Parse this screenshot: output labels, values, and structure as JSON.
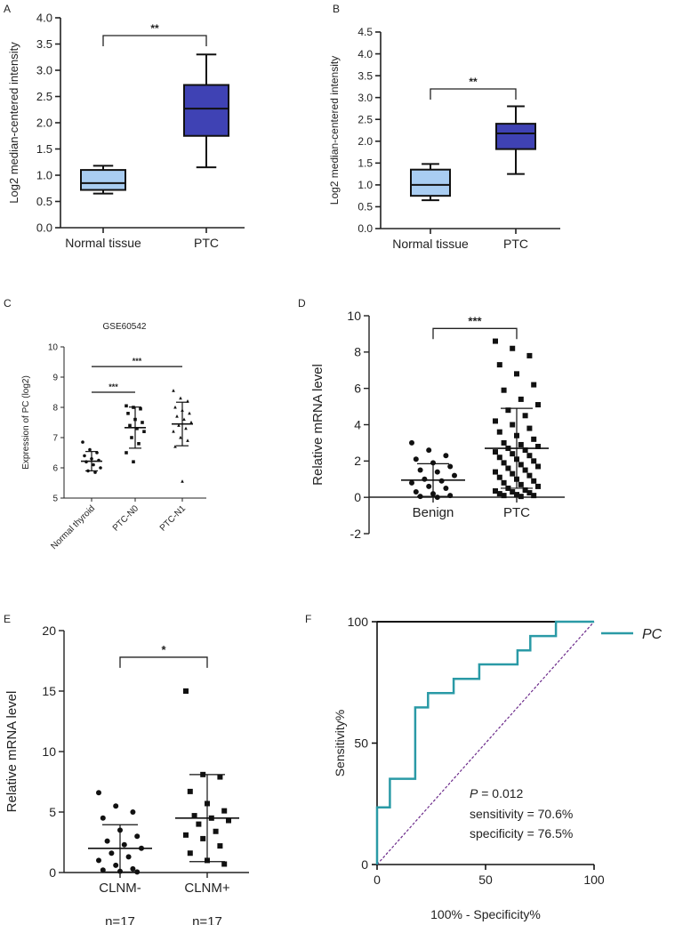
{
  "colors": {
    "normal_box": "#a9cdf2",
    "ptc_box": "#3f42b4",
    "roc_curve": "#2a9aa6",
    "diagonal": "#6b2a8a",
    "axis": "#222222"
  },
  "chart_data": [
    {
      "panel": "A",
      "type": "box",
      "ylabel": "Log2 median-centered intensity",
      "ylim": [
        0,
        4.0
      ],
      "yticks": [
        "0.0",
        "0.5",
        "1.0",
        "1.5",
        "2.0",
        "2.5",
        "3.0",
        "3.5",
        "4.0"
      ],
      "categories": [
        "Normal tissue",
        "PTC"
      ],
      "boxes": [
        {
          "name": "Normal tissue",
          "min": 0.65,
          "q1": 0.72,
          "median": 0.85,
          "q3": 1.1,
          "max": 1.18
        },
        {
          "name": "PTC",
          "min": 1.15,
          "q1": 1.75,
          "median": 2.27,
          "q3": 2.72,
          "max": 3.3
        }
      ],
      "significance": [
        {
          "label": "**",
          "from": 0,
          "to": 1
        }
      ]
    },
    {
      "panel": "B",
      "type": "box",
      "ylabel": "Log2 median-centered intensity",
      "ylim": [
        0,
        4.5
      ],
      "yticks": [
        "0.0",
        "0.5",
        "1.0",
        "1.5",
        "2.0",
        "2.5",
        "3.0",
        "3.5",
        "4.0",
        "4.5"
      ],
      "categories": [
        "Normal tissue",
        "PTC"
      ],
      "boxes": [
        {
          "name": "Normal tissue",
          "min": 0.65,
          "q1": 0.75,
          "median": 1.0,
          "q3": 1.35,
          "max": 1.48
        },
        {
          "name": "PTC",
          "min": 1.25,
          "q1": 1.82,
          "median": 2.18,
          "q3": 2.4,
          "max": 2.8
        }
      ],
      "significance": [
        {
          "label": "**",
          "from": 0,
          "to": 1
        }
      ]
    },
    {
      "panel": "C",
      "type": "scatter",
      "title": "GSE60542",
      "ylabel": "Expression of PC (log2)",
      "ylim": [
        5,
        10
      ],
      "yticks": [
        "5",
        "6",
        "7",
        "8",
        "9",
        "10"
      ],
      "categories": [
        "Normal thyroid",
        "PTC-N0",
        "PTC-N1"
      ],
      "groups": [
        {
          "name": "Normal thyroid",
          "mean": 6.22,
          "sd": 0.32,
          "marker": "circle",
          "points": [
            6.85,
            6.6,
            6.5,
            6.4,
            6.3,
            6.25,
            6.2,
            6.1,
            6.0,
            5.9,
            5.85
          ]
        },
        {
          "name": "PTC-N0",
          "mean": 7.33,
          "sd": 0.68,
          "marker": "square",
          "points": [
            8.05,
            8.0,
            7.95,
            7.8,
            7.6,
            7.5,
            7.4,
            7.3,
            7.2,
            7.0,
            6.8,
            6.5,
            6.2
          ]
        },
        {
          "name": "PTC-N1",
          "mean": 7.45,
          "sd": 0.72,
          "marker": "triangle",
          "points": [
            8.55,
            8.3,
            8.2,
            8.0,
            7.9,
            7.8,
            7.7,
            7.6,
            7.5,
            7.4,
            7.3,
            7.2,
            7.0,
            6.9,
            6.7,
            5.55
          ]
        }
      ],
      "significance": [
        {
          "label": "***",
          "from": 0,
          "to": 1,
          "y": 8.5
        },
        {
          "label": "***",
          "from": 0,
          "to": 2,
          "y": 9.35
        }
      ]
    },
    {
      "panel": "D",
      "type": "scatter",
      "ylabel": "Relative  mRNA level",
      "ylim": [
        -2,
        10
      ],
      "yticks": [
        "-2",
        "0",
        "2",
        "4",
        "6",
        "8",
        "10"
      ],
      "categories": [
        "Benign",
        "PTC"
      ],
      "groups": [
        {
          "name": "Benign",
          "mean": 0.95,
          "sd": 0.9,
          "marker": "circle",
          "points": [
            3.0,
            2.6,
            2.3,
            2.1,
            1.9,
            1.7,
            1.5,
            1.4,
            1.2,
            1.0,
            0.9,
            0.8,
            0.6,
            0.5,
            0.3,
            0.2,
            0.1,
            0.05,
            0.0
          ]
        },
        {
          "name": "PTC",
          "mean": 2.7,
          "sd": 2.2,
          "marker": "square",
          "points": [
            8.6,
            8.2,
            7.8,
            7.3,
            6.8,
            6.2,
            5.9,
            5.4,
            5.1,
            4.8,
            4.5,
            4.2,
            4.0,
            3.8,
            3.6,
            3.4,
            3.2,
            3.0,
            2.9,
            2.8,
            2.7,
            2.6,
            2.5,
            2.4,
            2.3,
            2.2,
            2.1,
            2.0,
            1.9,
            1.8,
            1.7,
            1.6,
            1.5,
            1.4,
            1.3,
            1.2,
            1.1,
            1.0,
            0.9,
            0.8,
            0.7,
            0.6,
            0.5,
            0.4,
            0.35,
            0.3,
            0.25,
            0.2,
            0.15,
            0.1,
            0.1,
            0.05
          ]
        }
      ],
      "significance": [
        {
          "label": "***",
          "from": 0,
          "to": 1,
          "y": 9.3
        }
      ]
    },
    {
      "panel": "E",
      "type": "scatter",
      "ylabel": "Relative  mRNA level",
      "ylim": [
        0,
        20
      ],
      "yticks": [
        "0",
        "5",
        "10",
        "15",
        "20"
      ],
      "categories": [
        "CLNM-",
        "CLNM+"
      ],
      "n_labels": [
        "n=17",
        "n=17"
      ],
      "groups": [
        {
          "name": "CLNM-",
          "mean": 2.0,
          "sd": 1.95,
          "marker": "circle",
          "points": [
            6.6,
            5.5,
            5.0,
            4.5,
            3.5,
            3.0,
            2.6,
            2.3,
            2.0,
            1.6,
            1.3,
            1.0,
            0.6,
            0.3,
            0.2,
            0.1,
            0.05
          ]
        },
        {
          "name": "CLNM+",
          "mean": 4.5,
          "sd": 3.6,
          "marker": "square",
          "points": [
            15.0,
            8.1,
            7.9,
            6.7,
            5.7,
            5.1,
            4.7,
            4.5,
            4.3,
            4.0,
            3.4,
            3.1,
            2.8,
            2.2,
            1.6,
            1.0,
            0.7
          ]
        }
      ],
      "significance": [
        {
          "label": "*",
          "from": 0,
          "to": 1,
          "y": 17.8
        }
      ]
    },
    {
      "panel": "F",
      "type": "line",
      "xlabel": "100% - Specificity%",
      "ylabel": "Sensitivity%",
      "xlim": [
        0,
        100
      ],
      "ylim": [
        0,
        100
      ],
      "xticks": [
        "0",
        "50",
        "100"
      ],
      "yticks": [
        "0",
        "50",
        "100"
      ],
      "legend": {
        "label": "PC",
        "position": "right"
      },
      "roc": [
        [
          0,
          0
        ],
        [
          0,
          23.5
        ],
        [
          5.9,
          23.5
        ],
        [
          5.9,
          35.3
        ],
        [
          17.6,
          35.3
        ],
        [
          17.6,
          64.7
        ],
        [
          23.5,
          64.7
        ],
        [
          23.5,
          70.6
        ],
        [
          35.3,
          70.6
        ],
        [
          35.3,
          76.5
        ],
        [
          47.1,
          76.5
        ],
        [
          47.1,
          82.4
        ],
        [
          64.7,
          82.4
        ],
        [
          64.7,
          88.2
        ],
        [
          70.6,
          88.2
        ],
        [
          70.6,
          94.1
        ],
        [
          82.4,
          94.1
        ],
        [
          82.4,
          100
        ],
        [
          100,
          100
        ]
      ],
      "annotation": {
        "p_label": "P",
        "p_value": " = 0.012",
        "sensitivity": "sensitivity = 70.6%",
        "specificity": "specificity = 76.5%"
      }
    }
  ]
}
